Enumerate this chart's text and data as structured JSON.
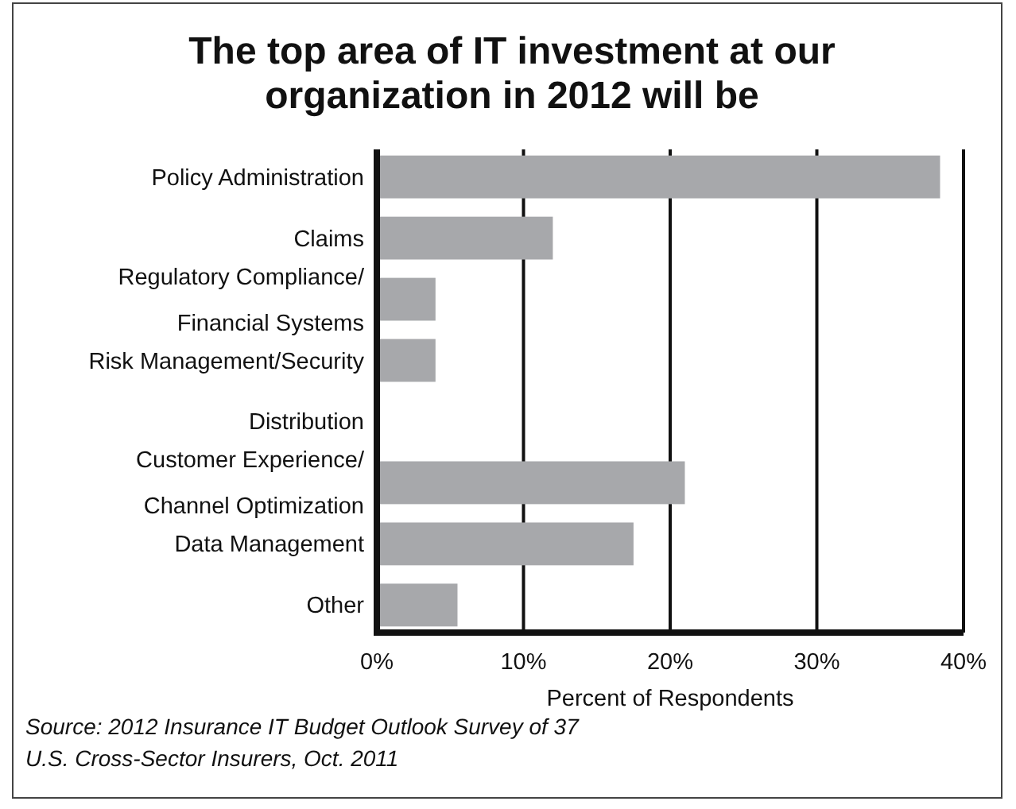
{
  "chart_data": {
    "type": "bar",
    "orientation": "horizontal",
    "title": "The top area of IT investment at our\norganization in 2012 will be",
    "xlabel": "Percent of Respondents",
    "categories": [
      "Policy Administration",
      "Claims",
      "Regulatory Compliance/\nFinancial Systems",
      "Risk Management/Security",
      "Distribution",
      "Customer Experience/\nChannel Optimization",
      "Data Management",
      "Other"
    ],
    "values": [
      38.4,
      12,
      4,
      4,
      0,
      21,
      17.5,
      5.5
    ],
    "color": "#a7a8ab",
    "xlim": [
      0,
      40
    ],
    "xticks": [
      {
        "value": 0,
        "label": "0%"
      },
      {
        "value": 10,
        "label": "10%"
      },
      {
        "value": 20,
        "label": "20%"
      },
      {
        "value": 30,
        "label": "30%"
      },
      {
        "value": 40,
        "label": "40%"
      }
    ],
    "grid": "x",
    "annotations": [
      "Source: 2012 Insurance IT Budget Outlook Survey of 37\nU.S. Cross-Sector Insurers, Oct. 2011"
    ]
  }
}
